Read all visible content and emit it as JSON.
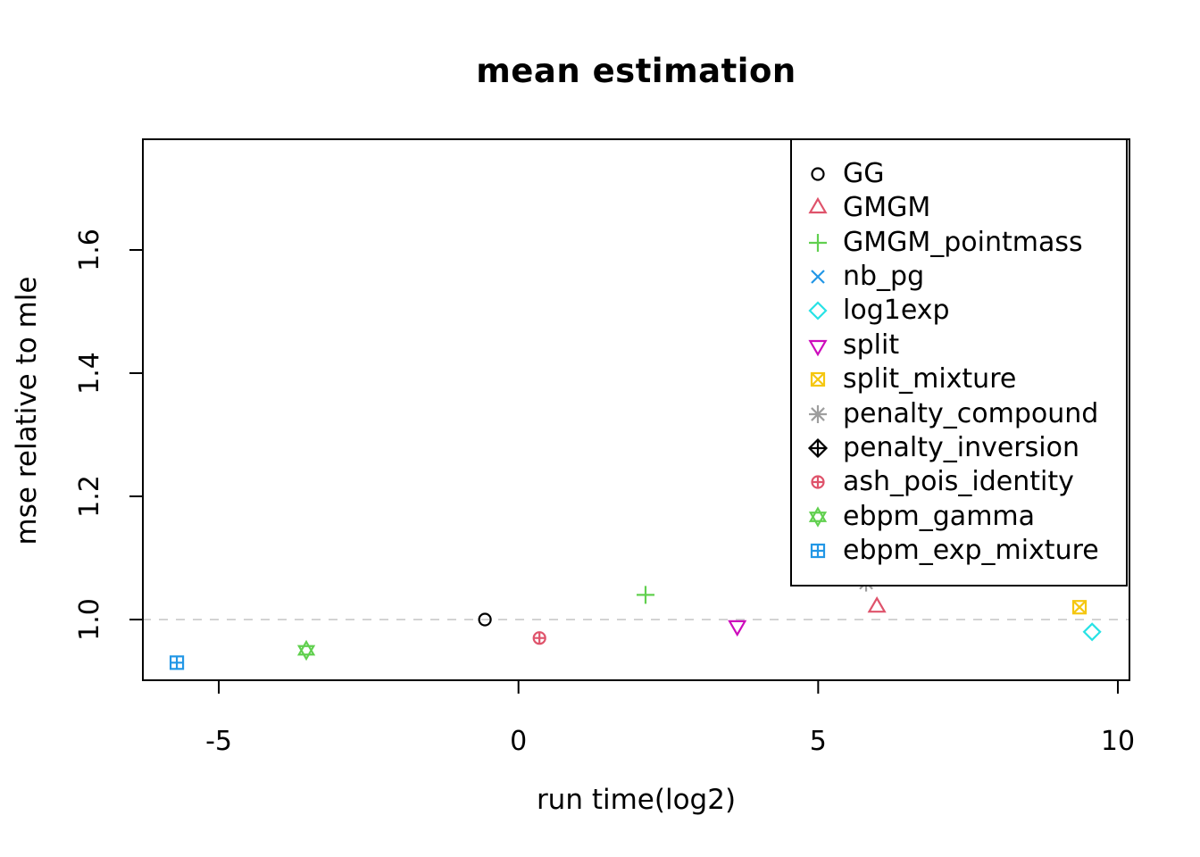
{
  "chart_data": {
    "type": "scatter",
    "title": "mean estimation",
    "xlabel": "run time(log2)",
    "ylabel": "mse relative to mle",
    "xlim": [
      -6.3,
      10.2
    ],
    "ylim": [
      0.9,
      1.78
    ],
    "grid": false,
    "legend_position": "topright",
    "x_ticks": [
      {
        "value": -5,
        "label": "-5"
      },
      {
        "value": 0,
        "label": "0"
      },
      {
        "value": 5,
        "label": "5"
      },
      {
        "value": 10,
        "label": "10"
      }
    ],
    "y_ticks": [
      {
        "value": 1.0,
        "label": "1.0"
      },
      {
        "value": 1.2,
        "label": "1.2"
      },
      {
        "value": 1.4,
        "label": "1.4"
      },
      {
        "value": 1.6,
        "label": "1.6"
      }
    ],
    "reference_line": {
      "y": 1.0,
      "style": "dashed",
      "color": "#d3d3d3"
    },
    "series": [
      {
        "name": "GG",
        "marker": "circle",
        "color": "#000000",
        "point": {
          "x": -0.56,
          "y": 1.0
        }
      },
      {
        "name": "GMGM",
        "marker": "triangle-up",
        "color": "#DF536B",
        "point": {
          "x": 5.98,
          "y": 1.02
        }
      },
      {
        "name": "GMGM_pointmass",
        "marker": "plus",
        "color": "#61D04F",
        "point": {
          "x": 2.12,
          "y": 1.04
        }
      },
      {
        "name": "nb_pg",
        "marker": "x",
        "color": "#2297E6",
        "point": null
      },
      {
        "name": "log1exp",
        "marker": "diamond",
        "color": "#28E2E5",
        "point": {
          "x": 9.57,
          "y": 0.98
        }
      },
      {
        "name": "split",
        "marker": "triangle-down",
        "color": "#CD0BBC",
        "point": {
          "x": 3.65,
          "y": 0.99
        }
      },
      {
        "name": "split_mixture",
        "marker": "square-x",
        "color": "#F5C710",
        "point": {
          "x": 9.36,
          "y": 1.02
        }
      },
      {
        "name": "penalty_compound",
        "marker": "asterisk",
        "color": "#9E9E9E",
        "point": {
          "x": 5.8,
          "y": 1.06
        }
      },
      {
        "name": "penalty_inversion",
        "marker": "diamond-plus",
        "color": "#000000",
        "point": null
      },
      {
        "name": "ash_pois_identity",
        "marker": "circle-plus",
        "color": "#DF536B",
        "point": {
          "x": 0.35,
          "y": 0.97
        }
      },
      {
        "name": "ebpm_gamma",
        "marker": "hexagram",
        "color": "#61D04F",
        "point": {
          "x": -3.54,
          "y": 0.95
        }
      },
      {
        "name": "ebpm_exp_mixture",
        "marker": "square-plus",
        "color": "#2297E6",
        "point": {
          "x": -5.7,
          "y": 0.93
        }
      }
    ]
  }
}
